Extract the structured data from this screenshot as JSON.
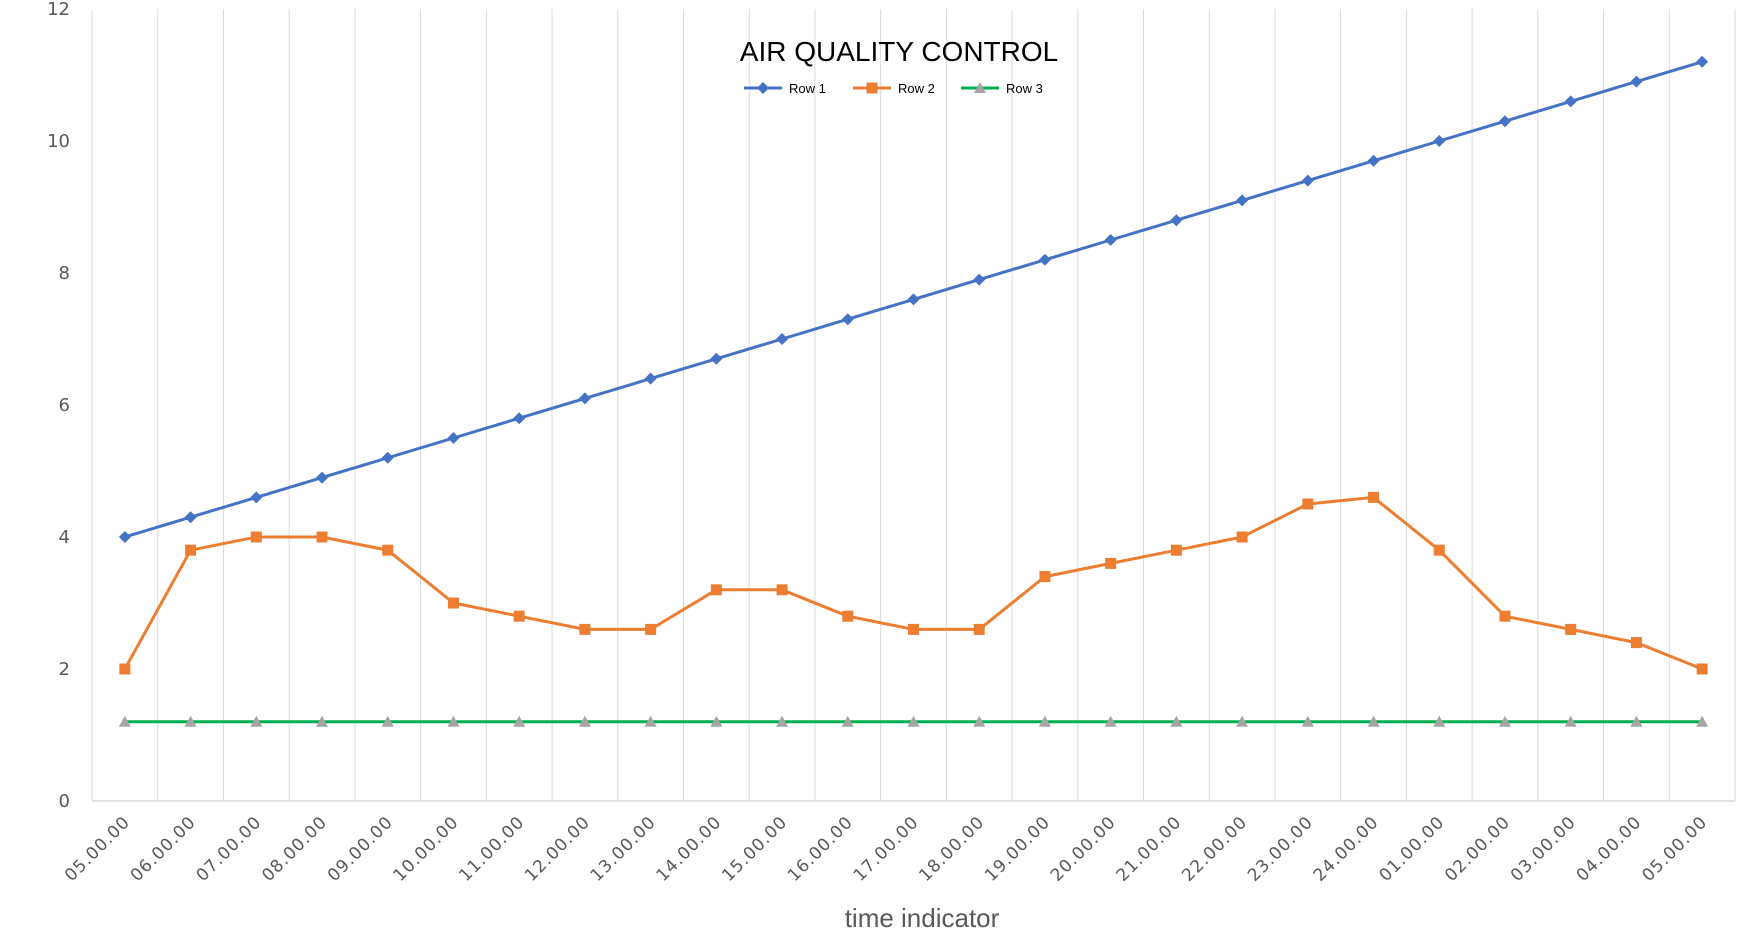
{
  "chart_data": {
    "type": "line",
    "title": "AIR QUALITY CONTROL",
    "xlabel": "time indicator",
    "ylabel": "",
    "ylim": [
      0,
      12
    ],
    "yticks": [
      0,
      2,
      4,
      6,
      8,
      10,
      12
    ],
    "grid": "vertical",
    "legend": "top-center",
    "categories": [
      "05.00.00",
      "06.00.00",
      "07.00.00",
      "08.00.00",
      "09.00.00",
      "10.00.00",
      "11.00.00",
      "12.00.00",
      "13.00.00",
      "14.00.00",
      "15.00.00",
      "16.00.00",
      "17.00.00",
      "18.00.00",
      "19.00.00",
      "20.00.00",
      "21.00.00",
      "22.00.00",
      "23.00.00",
      "24.00.00",
      "01.00.00",
      "02.00.00",
      "03.00.00",
      "04.00.00",
      "05.00.00"
    ],
    "series": [
      {
        "name": "Row 1",
        "color": "#4472C4",
        "marker": "diamond",
        "values": [
          4,
          4.3,
          4.6,
          4.9,
          5.2,
          5.5,
          5.8,
          6.1,
          6.4,
          6.7,
          7,
          7.3,
          7.6,
          7.9,
          8.2,
          8.5,
          8.8,
          9.1,
          9.4,
          9.7,
          10,
          10.3,
          10.6,
          10.9,
          11.2
        ]
      },
      {
        "name": "Row 2",
        "color": "#ED7D31",
        "marker": "square",
        "values": [
          2,
          3.8,
          4,
          4,
          3.8,
          3,
          2.8,
          2.6,
          2.6,
          3.2,
          3.2,
          2.8,
          2.6,
          2.6,
          3.4,
          3.6,
          3.8,
          4,
          4.5,
          4.6,
          3.8,
          2.8,
          2.6,
          2.4,
          2
        ]
      },
      {
        "name": "Row 3",
        "color": "#00B050",
        "marker_color": "#A5A5A5",
        "marker": "triangle",
        "values": [
          1.2,
          1.2,
          1.2,
          1.2,
          1.2,
          1.2,
          1.2,
          1.2,
          1.2,
          1.2,
          1.2,
          1.2,
          1.2,
          1.2,
          1.2,
          1.2,
          1.2,
          1.2,
          1.2,
          1.2,
          1.2,
          1.2,
          1.2,
          1.2,
          1.2
        ]
      }
    ]
  }
}
